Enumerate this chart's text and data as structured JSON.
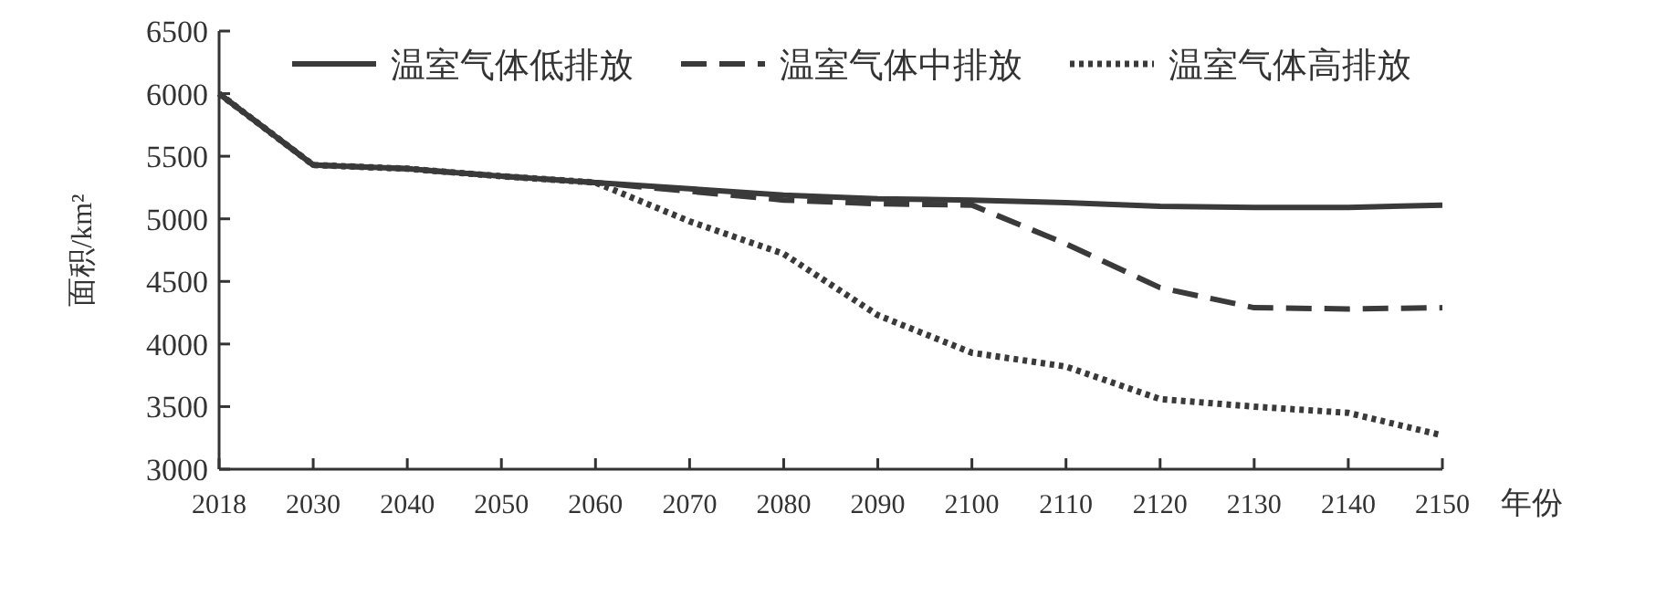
{
  "chart_data": {
    "type": "line",
    "ylabel": "面积/km²",
    "xlabel": "年份",
    "categories": [
      "2018",
      "2030",
      "2040",
      "2050",
      "2060",
      "2070",
      "2080",
      "2090",
      "2100",
      "2110",
      "2120",
      "2130",
      "2140",
      "2150"
    ],
    "ylim": [
      3000,
      6500
    ],
    "yticks": [
      3000,
      3500,
      4000,
      4500,
      5000,
      5500,
      6000,
      6500
    ],
    "grid": false,
    "legend": "top",
    "marker": "none",
    "series": [
      {
        "name": "温室气体低排放",
        "color": "#3a3a3a",
        "line_style": "solid",
        "values": [
          6000,
          5430,
          5400,
          5340,
          5290,
          5240,
          5190,
          5160,
          5150,
          5130,
          5100,
          5090,
          5090,
          5110
        ]
      },
      {
        "name": "温室气体中排放",
        "color": "#3a3a3a",
        "line_style": "dashed",
        "values": [
          6000,
          5430,
          5400,
          5340,
          5290,
          5220,
          5150,
          5120,
          5110,
          4800,
          4450,
          4290,
          4280,
          4290
        ]
      },
      {
        "name": "温室气体高排放",
        "color": "#3a3a3a",
        "line_style": "dotted",
        "values": [
          6000,
          5430,
          5400,
          5340,
          5290,
          4980,
          4720,
          4230,
          3930,
          3820,
          3560,
          3500,
          3450,
          3270
        ]
      }
    ]
  }
}
